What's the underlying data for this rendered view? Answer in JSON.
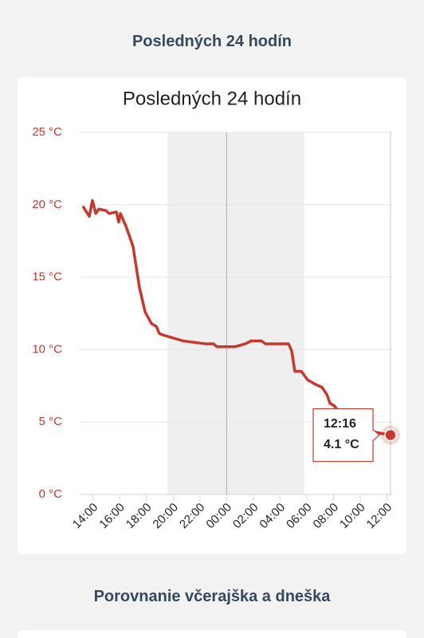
{
  "header": {
    "title": "Posledných 24 hodín"
  },
  "chart_data": {
    "type": "line",
    "title": "Posledných 24 hodín",
    "x": [
      "13:14",
      "13:43",
      "13:57",
      "14:12",
      "14:26",
      "14:58",
      "15:12",
      "15:45",
      "15:55",
      "16:03",
      "16:28",
      "16:49",
      "17:00",
      "17:28",
      "17:54",
      "18:22",
      "18:44",
      "18:58",
      "19:16",
      "20:45",
      "22:26",
      "23:01",
      "23:16",
      "00:38",
      "01:24",
      "01:50",
      "02:36",
      "02:54",
      "04:38",
      "04:52",
      "05:06",
      "05:35",
      "06:04",
      "06:39",
      "07:08",
      "07:30",
      "07:44",
      "08:05",
      "08:41",
      "09:35",
      "11:05",
      "12:16"
    ],
    "values": [
      19.9,
      19.2,
      20.3,
      19.4,
      19.7,
      19.6,
      19.4,
      19.5,
      18.8,
      19.4,
      18.5,
      17.6,
      17.1,
      14.3,
      12.6,
      11.8,
      11.6,
      11.1,
      11.0,
      10.6,
      10.4,
      10.4,
      10.2,
      10.2,
      10.4,
      10.6,
      10.6,
      10.4,
      10.4,
      9.9,
      8.5,
      8.5,
      7.9,
      7.6,
      7.4,
      6.9,
      6.3,
      6.1,
      5.2,
      4.7,
      4.3,
      4.1
    ],
    "color": "#c5392f",
    "xlim": [
      "13:00",
      "12:16"
    ],
    "xticks": [
      "14:00",
      "16:00",
      "18:00",
      "20:00",
      "22:00",
      "00:00",
      "02:00",
      "04:00",
      "06:00",
      "08:00",
      "10:00",
      "12:00"
    ],
    "ylim": [
      0,
      25
    ],
    "yticks": [
      {
        "value": 0,
        "label": "0 °C"
      },
      {
        "value": 5,
        "label": "5 °C"
      },
      {
        "value": 10,
        "label": "10 °C"
      },
      {
        "value": 15,
        "label": "15 °C"
      },
      {
        "value": 20,
        "label": "20 °C"
      },
      {
        "value": 25,
        "label": "25 °C"
      }
    ],
    "grid": true,
    "bands": [
      {
        "from": "19:35",
        "to": "05:48"
      }
    ],
    "plot_lines": [
      "00:00"
    ],
    "tooltip": {
      "label": "4.1 °C"
    }
  },
  "section2": {
    "title": "Porovnanie včerajška a dneška"
  }
}
